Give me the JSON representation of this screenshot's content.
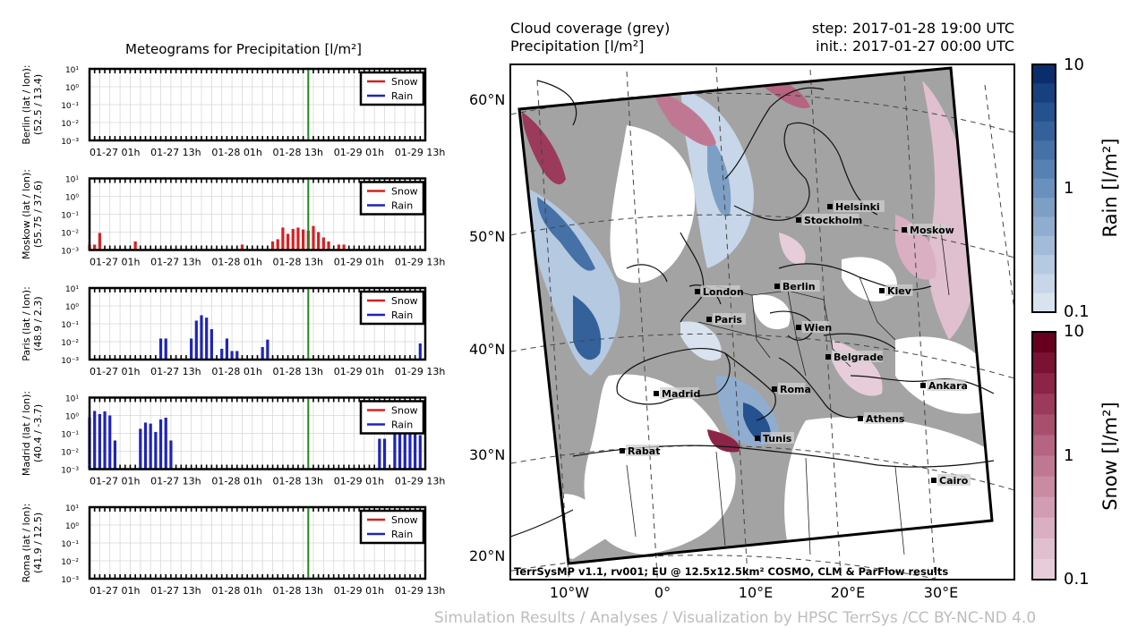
{
  "meteogram": {
    "title": "Meteograms for Precipitation [l/m²]",
    "tick_labels": [
      "01-27 01h",
      "01-27 13h",
      "01-28 01h",
      "01-28 13h",
      "01-29 01h",
      "01-29 13h"
    ],
    "y_tick_labels": [
      "10¹",
      "10⁰",
      "10⁻¹",
      "10⁻²",
      "10⁻³"
    ],
    "legend": {
      "snow": "Snow",
      "rain": "Rain"
    },
    "colors": {
      "snow": "#d62020",
      "rain": "#1f24b8",
      "now_line": "#1a8a1a"
    },
    "current_time_hours": 43
  },
  "map": {
    "left_header": [
      "Cloud coverage (grey)",
      "Precipitation [l/m²]"
    ],
    "right_header": [
      "step: 2017-01-28 19:00 UTC",
      "init.: 2017-01-27 00:00 UTC"
    ],
    "lat_labels": [
      "60°N",
      "50°N",
      "40°N",
      "30°N",
      "20°N"
    ],
    "lon_labels": [
      "10°W",
      "0°",
      "10°E",
      "20°E",
      "30°E"
    ],
    "credit": "TerrSysMP v1.1, rv001; EU @ 12.5x12.5km² COSMO, CLM & ParFlow results",
    "cities": [
      "Helsinki",
      "Stockholm",
      "Moskow",
      "London",
      "Berlin",
      "Kiev",
      "Paris",
      "Wien",
      "Belgrade",
      "Madrid",
      "Roma",
      "Ankara",
      "Athens",
      "Tunis",
      "Rabat",
      "Cairo"
    ]
  },
  "colorbars": {
    "rain": {
      "label": "Rain [l/m²]",
      "ticks": [
        "10",
        "1",
        "0.1"
      ],
      "colors": [
        "#0b2d6b",
        "#17407f",
        "#24528f",
        "#34619a",
        "#4571a6",
        "#5781b2",
        "#6a90bd",
        "#7d9fc6",
        "#90add0",
        "#a3bbd8",
        "#b5c9e1",
        "#c7d6e8",
        "#d9e3f0"
      ]
    },
    "snow": {
      "label": "Snow [l/m²]",
      "ticks": [
        "10",
        "1",
        "0.1"
      ],
      "colors": [
        "#67001f",
        "#7a1234",
        "#8c2447",
        "#9c3a5b",
        "#a94f6e",
        "#b56481",
        "#c07892",
        "#c98ba2",
        "#d19db2",
        "#d9afc1",
        "#e0bfce",
        "#e6cdd9"
      ]
    }
  },
  "footer": "Simulation Results / Analyses / Visualization by HPSC TerrSys /CC BY-NC-ND 4.0",
  "chart_data": [
    {
      "type": "bar",
      "title": "Meteograms for Precipitation [l/m²]",
      "ylabel": "Berlin (lat / lon):\n(52.5 / 13.4)",
      "yscale": "log",
      "ylim": [
        0.001,
        10
      ],
      "x_range_hours": [
        0,
        66
      ],
      "series": [
        {
          "name": "Snow",
          "x": [],
          "values": []
        },
        {
          "name": "Rain",
          "x": [],
          "values": []
        }
      ]
    },
    {
      "type": "bar",
      "ylabel": "Moskow (lat / lon):\n(55.75 / 37.6)",
      "yscale": "log",
      "ylim": [
        0.001,
        10
      ],
      "x_range_hours": [
        0,
        66
      ],
      "series": [
        {
          "name": "Snow",
          "x": [
            0,
            1,
            2,
            9,
            30,
            36,
            37,
            38,
            39,
            40,
            41,
            42,
            43,
            44,
            45,
            46,
            47,
            49,
            50
          ],
          "values": [
            0.002,
            0.002,
            0.009,
            0.003,
            0.002,
            0.003,
            0.004,
            0.018,
            0.008,
            0.015,
            0.018,
            0.014,
            0.012,
            0.022,
            0.01,
            0.005,
            0.003,
            0.002,
            0.002
          ]
        },
        {
          "name": "Rain",
          "x": [],
          "values": []
        }
      ]
    },
    {
      "type": "bar",
      "ylabel": "Paris (lat / lon):\n(48.9 / 2.3)",
      "yscale": "log",
      "ylim": [
        0.001,
        10
      ],
      "x_range_hours": [
        0,
        66
      ],
      "series": [
        {
          "name": "Snow",
          "x": [],
          "values": []
        },
        {
          "name": "Rain",
          "x": [
            14,
            15,
            20,
            21,
            22,
            23,
            24,
            26,
            27,
            28,
            29,
            34,
            35,
            65
          ],
          "values": [
            0.015,
            0.015,
            0.015,
            0.15,
            0.3,
            0.22,
            0.05,
            0.004,
            0.015,
            0.003,
            0.003,
            0.005,
            0.013,
            0.008
          ]
        }
      ]
    },
    {
      "type": "bar",
      "ylabel": "Madrid (lat / lon):\n(40.4 / -3.7)",
      "yscale": "log",
      "ylim": [
        0.001,
        10
      ],
      "x_range_hours": [
        0,
        66
      ],
      "series": [
        {
          "name": "Snow",
          "x": [],
          "values": []
        },
        {
          "name": "Rain",
          "x": [
            0,
            1,
            2,
            3,
            4,
            5,
            8,
            9,
            10,
            11,
            12,
            13,
            14,
            15,
            16,
            57,
            58,
            60,
            61,
            62,
            63,
            64,
            65
          ],
          "values": [
            0.8,
            1.8,
            1.2,
            1.7,
            1.0,
            0.04,
            0.001,
            0.001,
            0.18,
            0.4,
            0.35,
            0.12,
            0.6,
            0.75,
            0.04,
            0.05,
            0.05,
            0.1,
            0.15,
            0.2,
            0.2,
            0.12,
            0.08
          ]
        }
      ]
    },
    {
      "type": "bar",
      "ylabel": "Roma (lat / lon):\n(41.9 / 12.5)",
      "yscale": "log",
      "ylim": [
        0.001,
        10
      ],
      "x_range_hours": [
        0,
        66
      ],
      "series": [
        {
          "name": "Snow",
          "x": [],
          "values": []
        },
        {
          "name": "Rain",
          "x": [],
          "values": []
        }
      ]
    }
  ]
}
